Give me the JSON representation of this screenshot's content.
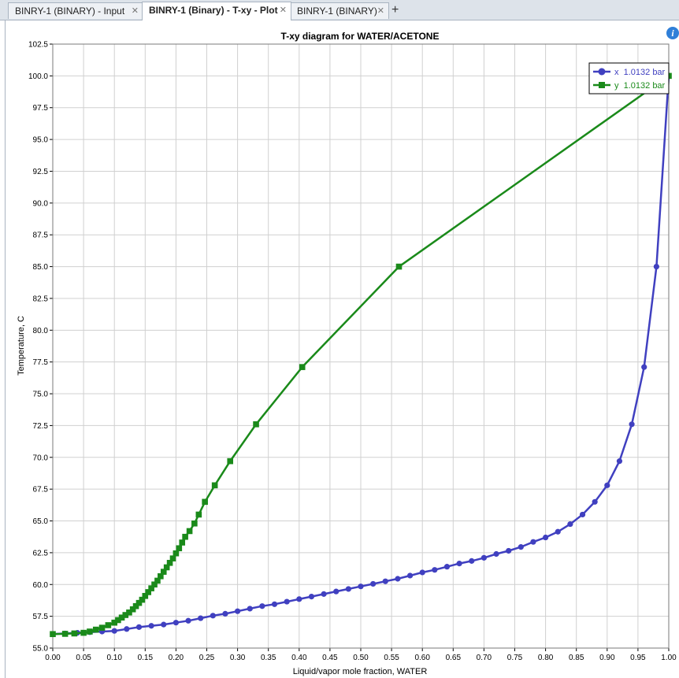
{
  "tabs": [
    {
      "label": "BINRY-1 (BINARY) - Input",
      "active": false
    },
    {
      "label": "BINRY-1 (Binary) - T-xy - Plot",
      "active": true
    },
    {
      "label": "BINRY-1 (BINARY)",
      "active": false
    }
  ],
  "colors": {
    "x_series": "#4040c0",
    "y_series": "#1a8a1a",
    "grid": "#d0d0d0"
  },
  "icons": {
    "info": "info-icon",
    "close": "close-icon",
    "add": "plus-icon"
  },
  "chart_data": {
    "type": "line",
    "title": "T-xy diagram for WATER/ACETONE",
    "xlabel": "Liquid/vapor mole fraction, WATER",
    "ylabel": "Temperature, C",
    "xlim": [
      0,
      1
    ],
    "ylim": [
      55,
      102.5
    ],
    "xticks": [
      "0.00",
      "0.05",
      "0.10",
      "0.15",
      "0.20",
      "0.25",
      "0.30",
      "0.35",
      "0.40",
      "0.45",
      "0.50",
      "0.55",
      "0.60",
      "0.65",
      "0.70",
      "0.75",
      "0.80",
      "0.85",
      "0.90",
      "0.95",
      "1.00"
    ],
    "yticks": [
      "55.0",
      "57.5",
      "60.0",
      "62.5",
      "65.0",
      "67.5",
      "70.0",
      "72.5",
      "75.0",
      "77.5",
      "80.0",
      "82.5",
      "85.0",
      "87.5",
      "90.0",
      "92.5",
      "95.0",
      "97.5",
      "100.0",
      "102.5"
    ],
    "grid": true,
    "legend_position": "top-right",
    "series": [
      {
        "name": "x  1.0132 bar",
        "marker": "circle",
        "points": [
          [
            0.0,
            56.1
          ],
          [
            0.02,
            56.15
          ],
          [
            0.04,
            56.2
          ],
          [
            0.06,
            56.25
          ],
          [
            0.08,
            56.3
          ],
          [
            0.1,
            56.35
          ],
          [
            0.12,
            56.5
          ],
          [
            0.14,
            56.65
          ],
          [
            0.16,
            56.75
          ],
          [
            0.18,
            56.85
          ],
          [
            0.2,
            57.0
          ],
          [
            0.22,
            57.15
          ],
          [
            0.24,
            57.35
          ],
          [
            0.26,
            57.55
          ],
          [
            0.28,
            57.7
          ],
          [
            0.3,
            57.9
          ],
          [
            0.32,
            58.1
          ],
          [
            0.34,
            58.3
          ],
          [
            0.36,
            58.45
          ],
          [
            0.38,
            58.65
          ],
          [
            0.4,
            58.85
          ],
          [
            0.42,
            59.05
          ],
          [
            0.44,
            59.25
          ],
          [
            0.46,
            59.45
          ],
          [
            0.48,
            59.65
          ],
          [
            0.5,
            59.85
          ],
          [
            0.52,
            60.05
          ],
          [
            0.54,
            60.25
          ],
          [
            0.56,
            60.45
          ],
          [
            0.58,
            60.7
          ],
          [
            0.6,
            60.95
          ],
          [
            0.62,
            61.15
          ],
          [
            0.64,
            61.4
          ],
          [
            0.66,
            61.65
          ],
          [
            0.68,
            61.85
          ],
          [
            0.7,
            62.1
          ],
          [
            0.72,
            62.4
          ],
          [
            0.74,
            62.65
          ],
          [
            0.76,
            62.95
          ],
          [
            0.78,
            63.35
          ],
          [
            0.8,
            63.7
          ],
          [
            0.82,
            64.15
          ],
          [
            0.84,
            64.75
          ],
          [
            0.86,
            65.5
          ],
          [
            0.88,
            66.5
          ],
          [
            0.9,
            67.8
          ],
          [
            0.92,
            69.7
          ],
          [
            0.94,
            72.6
          ],
          [
            0.96,
            77.1
          ],
          [
            0.98,
            85.0
          ],
          [
            1.0,
            100.0
          ]
        ]
      },
      {
        "name": "y  1.0132 bar",
        "marker": "square",
        "points": [
          [
            0.0,
            56.1
          ],
          [
            0.02,
            56.12
          ],
          [
            0.035,
            56.15
          ],
          [
            0.05,
            56.2
          ],
          [
            0.06,
            56.3
          ],
          [
            0.07,
            56.45
          ],
          [
            0.08,
            56.6
          ],
          [
            0.09,
            56.8
          ],
          [
            0.1,
            57.0
          ],
          [
            0.106,
            57.2
          ],
          [
            0.112,
            57.4
          ],
          [
            0.118,
            57.6
          ],
          [
            0.124,
            57.8
          ],
          [
            0.13,
            58.05
          ],
          [
            0.135,
            58.3
          ],
          [
            0.14,
            58.55
          ],
          [
            0.145,
            58.8
          ],
          [
            0.15,
            59.1
          ],
          [
            0.155,
            59.4
          ],
          [
            0.16,
            59.7
          ],
          [
            0.165,
            60.0
          ],
          [
            0.17,
            60.3
          ],
          [
            0.175,
            60.65
          ],
          [
            0.18,
            61.0
          ],
          [
            0.185,
            61.35
          ],
          [
            0.19,
            61.7
          ],
          [
            0.195,
            62.05
          ],
          [
            0.2,
            62.45
          ],
          [
            0.205,
            62.85
          ],
          [
            0.21,
            63.3
          ],
          [
            0.215,
            63.75
          ],
          [
            0.222,
            64.2
          ],
          [
            0.23,
            64.8
          ],
          [
            0.237,
            65.5
          ],
          [
            0.247,
            66.5
          ],
          [
            0.263,
            67.8
          ],
          [
            0.288,
            69.7
          ],
          [
            0.33,
            72.6
          ],
          [
            0.405,
            77.1
          ],
          [
            0.562,
            85.0
          ],
          [
            1.0,
            100.0
          ]
        ]
      }
    ]
  }
}
